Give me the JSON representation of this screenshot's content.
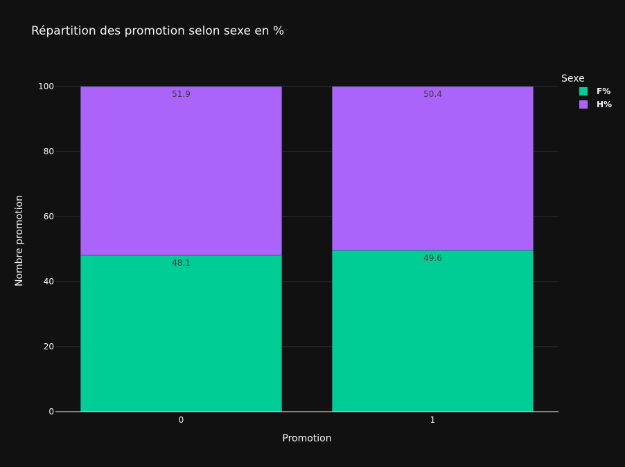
{
  "chart_data": {
    "type": "bar",
    "barmode": "stack",
    "title": "Répartition des promotion selon sexe en %",
    "xlabel": "Promotion",
    "ylabel": "Nombre promotion",
    "categories": [
      "0",
      "1"
    ],
    "ylim": [
      0,
      100
    ],
    "yticks": [
      "0",
      "20",
      "40",
      "60",
      "80",
      "100"
    ],
    "grid": true,
    "legend": {
      "title": "Sexe",
      "placement": "top-right"
    },
    "series": [
      {
        "name": "F%",
        "values": [
          48.1,
          49.6
        ],
        "labels": [
          "48.1",
          "49.6"
        ],
        "color": "#00cc96"
      },
      {
        "name": "H%",
        "values": [
          51.9,
          50.4
        ],
        "labels": [
          "51.9",
          "50.4"
        ],
        "color": "#ab63fa"
      }
    ]
  }
}
